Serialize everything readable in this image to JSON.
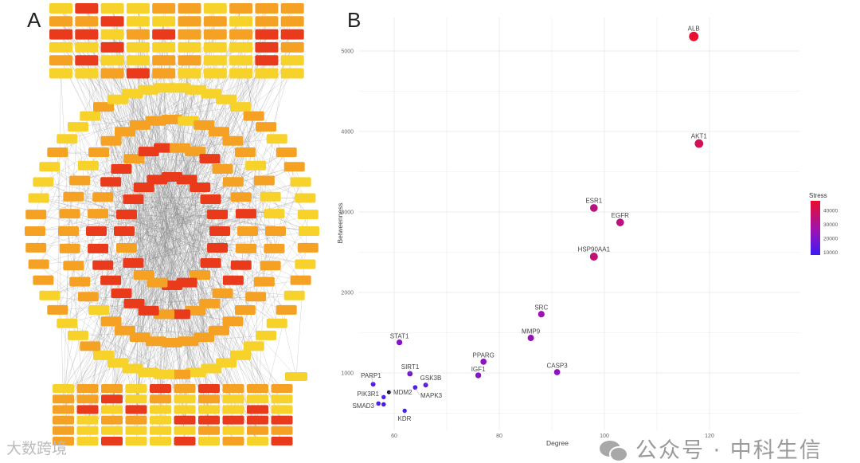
{
  "panel_a": {
    "letter": "A",
    "node_colors": {
      "low": "#f7d22b",
      "mid": "#f5a224",
      "high": "#ea3a1c",
      "edge": "#8a8a8a"
    }
  },
  "panel_b": {
    "letter": "B"
  },
  "chart_data": {
    "type": "scatter",
    "title": "",
    "xlabel": "Degree",
    "ylabel": "Betweenness",
    "xlim": [
      53,
      124
    ],
    "ylim": [
      250,
      5400
    ],
    "xticks": [
      60,
      80,
      100,
      120
    ],
    "yticks": [
      1000,
      2000,
      3000,
      4000,
      5000
    ],
    "grid": true,
    "color_legend": {
      "title": "Stress",
      "ticks": [
        40000,
        30000,
        20000,
        10000
      ],
      "range": [
        8000,
        47000
      ],
      "colors": [
        "#3a1cf2",
        "#9c12b6",
        "#ea0f2a"
      ],
      "placement": "right"
    },
    "points": [
      {
        "label": "ALB",
        "degree": 117,
        "betweenness": 5180,
        "stress": 46000
      },
      {
        "label": "AKT1",
        "degree": 118,
        "betweenness": 3850,
        "stress": 40000
      },
      {
        "label": "ESR1",
        "degree": 98,
        "betweenness": 3050,
        "stress": 34000
      },
      {
        "label": "EGFR",
        "degree": 103,
        "betweenness": 2870,
        "stress": 34000
      },
      {
        "label": "HSP90AA1",
        "degree": 98,
        "betweenness": 2445,
        "stress": 36000
      },
      {
        "label": "SRC",
        "degree": 88,
        "betweenness": 1730,
        "stress": 26000
      },
      {
        "label": "MMP9",
        "degree": 86,
        "betweenness": 1435,
        "stress": 25000
      },
      {
        "label": "STAT1",
        "degree": 61,
        "betweenness": 1380,
        "stress": 21000
      },
      {
        "label": "PPARG",
        "degree": 77,
        "betweenness": 1140,
        "stress": 23000
      },
      {
        "label": "IGF1",
        "degree": 76,
        "betweenness": 970,
        "stress": 21000
      },
      {
        "label": "CASP3",
        "degree": 91,
        "betweenness": 1010,
        "stress": 23000
      },
      {
        "label": "SIRT1",
        "degree": 63,
        "betweenness": 990,
        "stress": 18000
      },
      {
        "label": "PARP1",
        "degree": 56,
        "betweenness": 860,
        "stress": 13000
      },
      {
        "label": "MAPK3",
        "degree": 64,
        "betweenness": 820,
        "stress": 12000
      },
      {
        "label": "GSK3B",
        "degree": 66,
        "betweenness": 850,
        "stress": 14000
      },
      {
        "label": "MDM2",
        "degree": 59,
        "betweenness": 760,
        "stress": 8000
      },
      {
        "label": "PIK3R1",
        "degree": 58,
        "betweenness": 700,
        "stress": 10000
      },
      {
        "label": "SMAD3",
        "degree": 57,
        "betweenness": 620,
        "stress": 11000
      },
      {
        "label": "",
        "degree": 58,
        "betweenness": 610,
        "stress": 11000
      },
      {
        "label": "KDR",
        "degree": 62,
        "betweenness": 530,
        "stress": 10000
      }
    ]
  },
  "watermarks": {
    "wechat": "公众号 · 中科生信",
    "corner": "大数跨境"
  }
}
